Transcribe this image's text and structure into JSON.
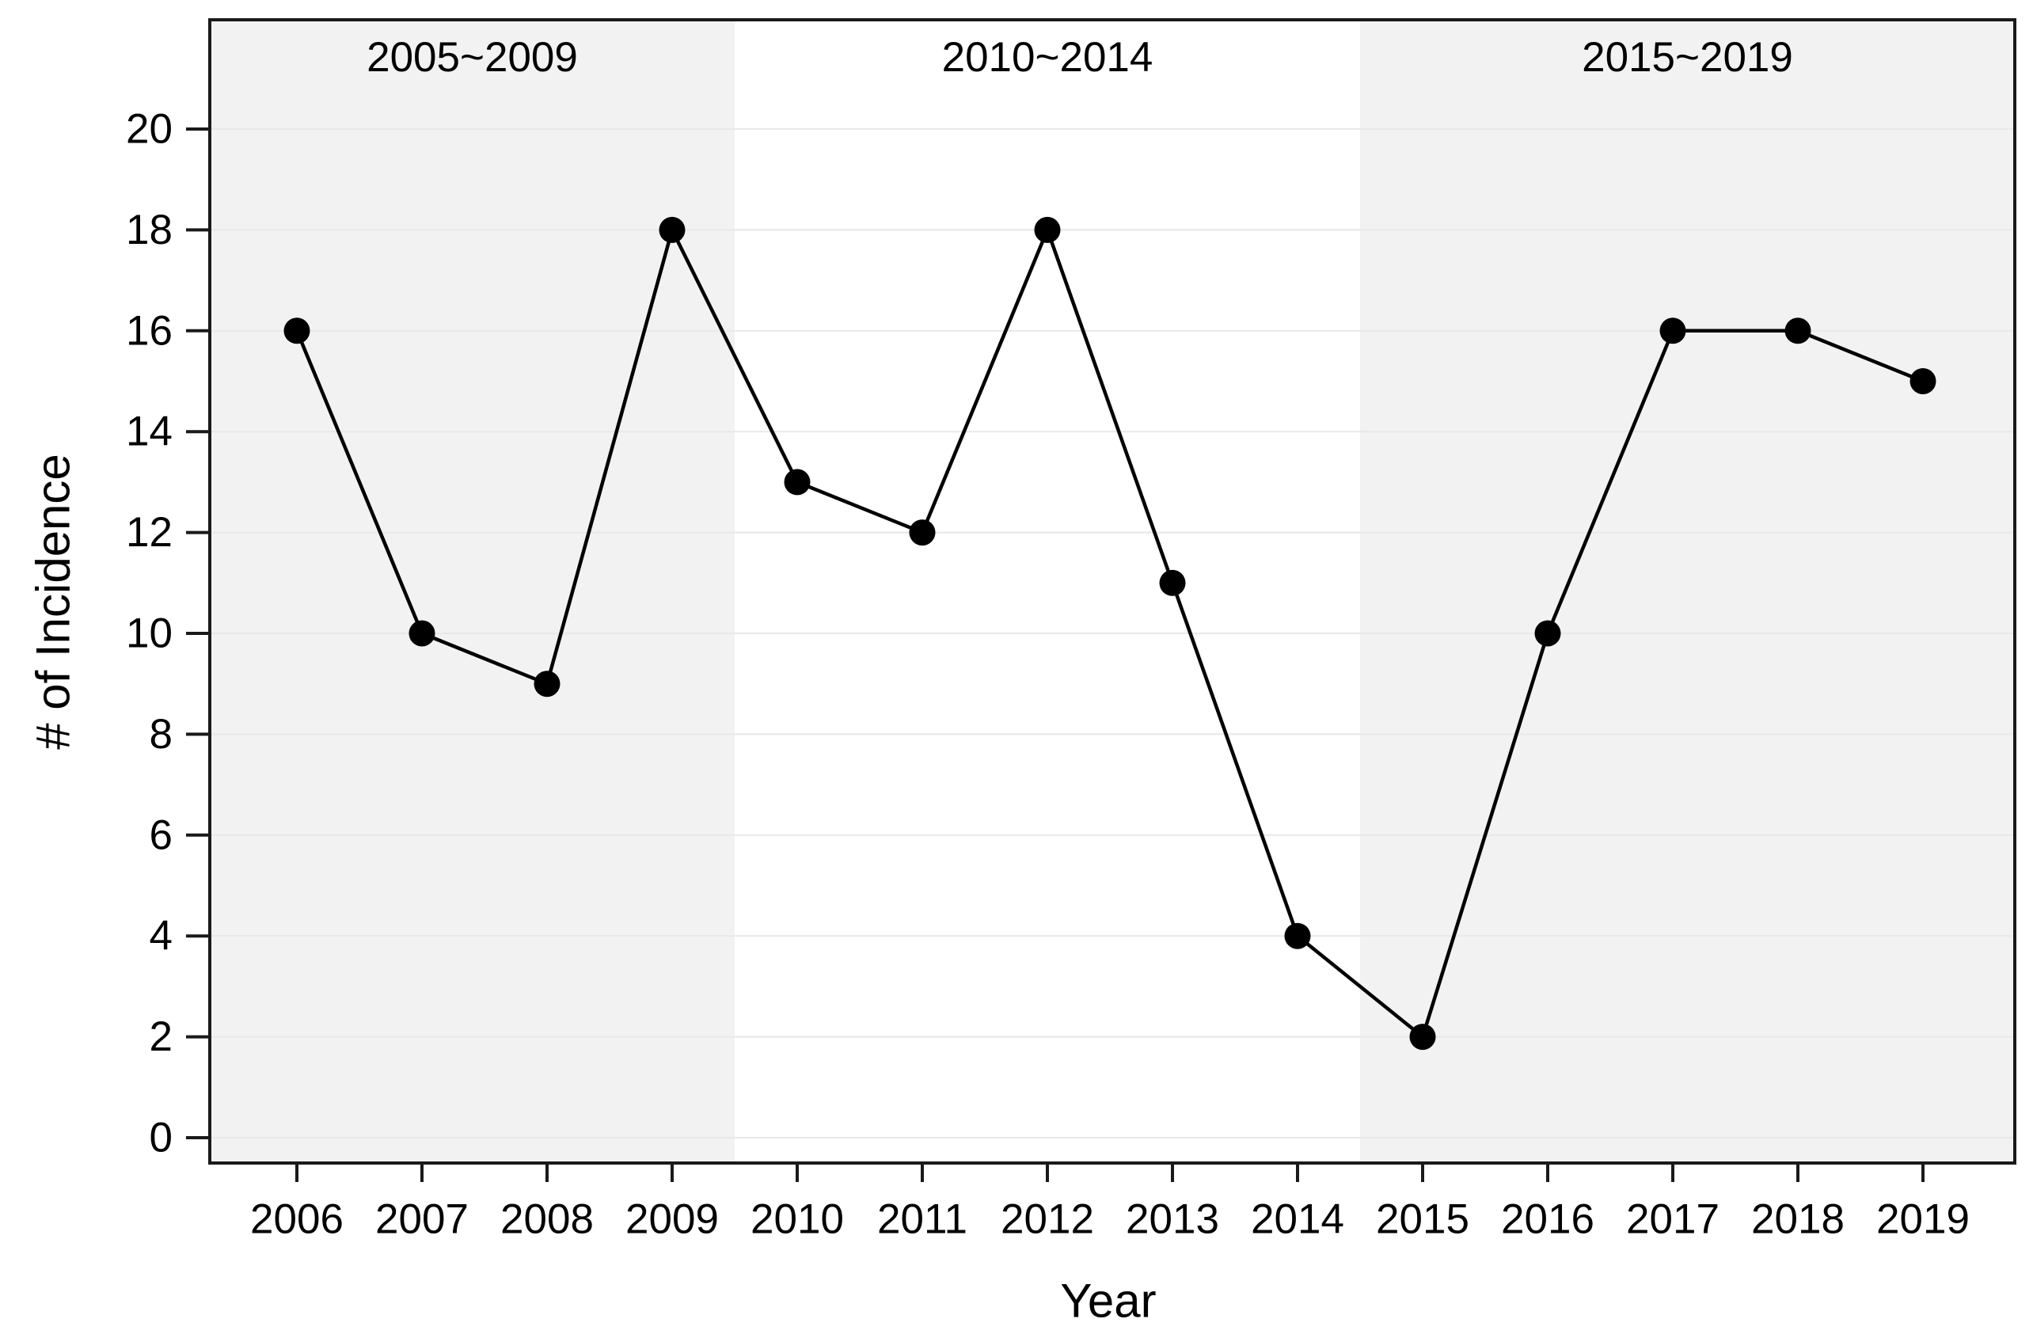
{
  "chart_data": {
    "type": "line",
    "title": "",
    "xlabel": "Year",
    "ylabel": "# of Incidence",
    "categories": [
      "2006",
      "2007",
      "2008",
      "2009",
      "2010",
      "2011",
      "2012",
      "2013",
      "2014",
      "2015",
      "2016",
      "2017",
      "2018",
      "2019"
    ],
    "values": [
      16,
      10,
      9,
      18,
      13,
      12,
      18,
      11,
      4,
      2,
      10,
      16,
      16,
      15
    ],
    "ylim": [
      0,
      20
    ],
    "yticks": [
      0,
      2,
      4,
      6,
      8,
      10,
      12,
      14,
      16,
      18,
      20
    ],
    "grid": true,
    "legend_position": "none",
    "bands": [
      {
        "label": "2005~2009",
        "from": "2006",
        "to": "2009",
        "shaded": true
      },
      {
        "label": "2010~2014",
        "from": "2010",
        "to": "2014",
        "shaded": false
      },
      {
        "label": "2015~2019",
        "from": "2015",
        "to": "2019",
        "shaded": true
      }
    ],
    "colors": {
      "line": "#000000",
      "marker": "#000000",
      "band_fill": "#f2f2f2",
      "gridline": "#e9e9e9",
      "axis": "#1a1a1a",
      "text": "#000000",
      "background": "#ffffff"
    }
  }
}
